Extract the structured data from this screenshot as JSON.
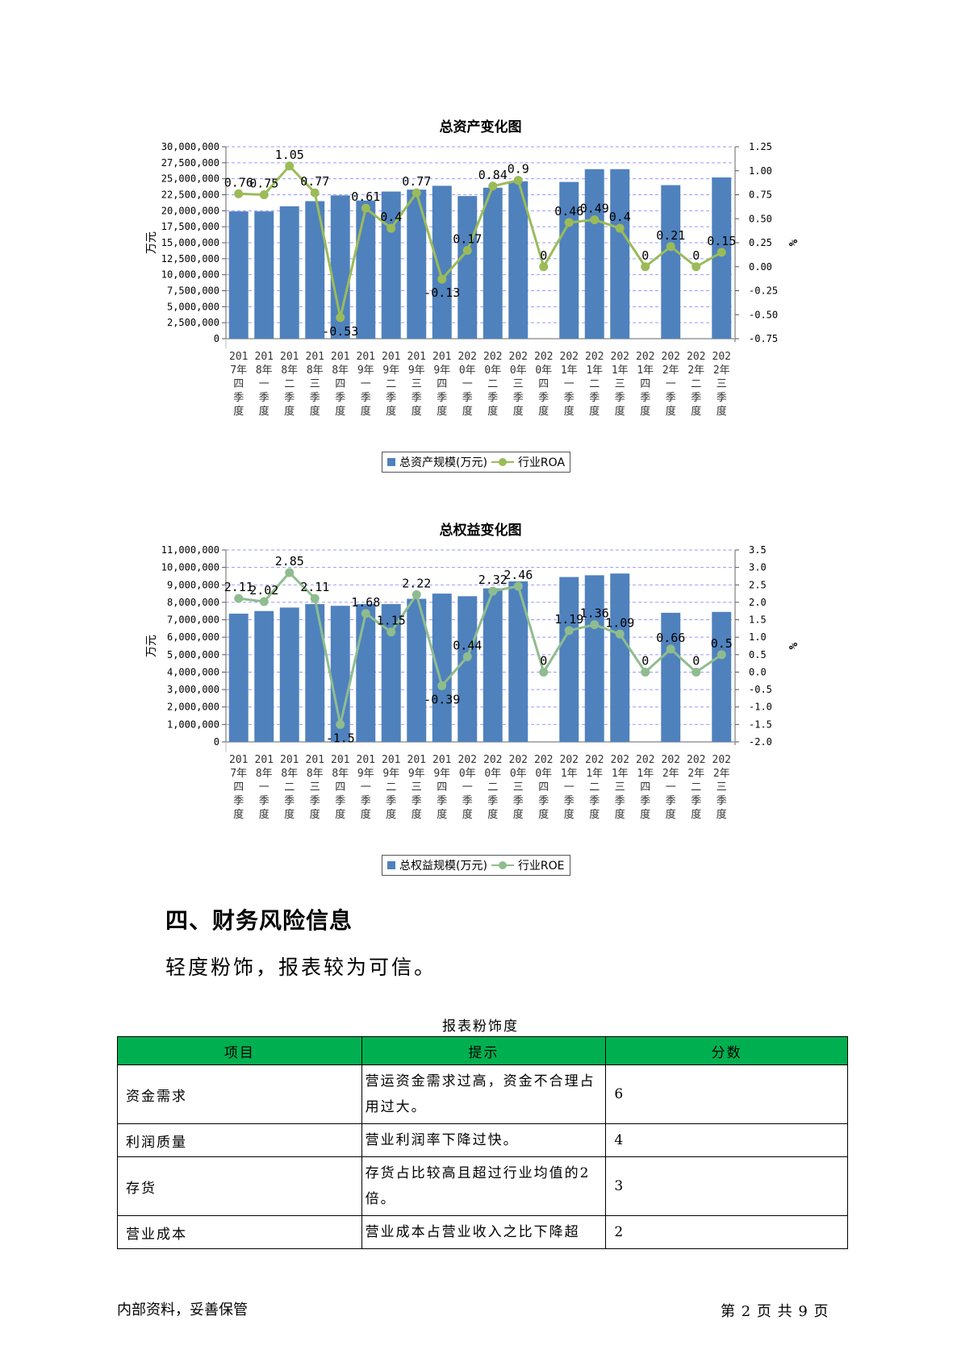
{
  "charts": [
    {
      "title": "总资产变化图",
      "chart_data": {
        "type": "bar+line",
        "title": "总资产变化图",
        "ylabel": "万元",
        "y2label": "%",
        "ylim": [
          0,
          30000000
        ],
        "y_ticks": [
          "30,000,000",
          "27,500,000",
          "25,000,000",
          "22,500,000",
          "20,000,000",
          "17,500,000",
          "15,000,000",
          "12,500,000",
          "10,000,000",
          "7,500,000",
          "5,000,000",
          "2,500,000",
          "0"
        ],
        "y2lim": [
          -0.75,
          1.25
        ],
        "y2_ticks": [
          "1.25",
          "1.00",
          "0.75",
          "0.50",
          "0.25",
          "0.00",
          "-0.25",
          "-0.50",
          "-0.75"
        ],
        "categories": [
          "2017年四季度",
          "2018年一季度",
          "2018年二季度",
          "2018年三季度",
          "2018年四季度",
          "2019年一季度",
          "2019年二季度",
          "2019年三季度",
          "2019年四季度",
          "2020年一季度",
          "2020年二季度",
          "2020年三季度",
          "2020年四季度",
          "2021年一季度",
          "2021年二季度",
          "2021年三季度",
          "2021年四季度",
          "2022年一季度",
          "2022年二季度",
          "2022年三季度"
        ],
        "series": [
          {
            "name": "总资产规模(万元)",
            "kind": "bar",
            "values": [
              19900000,
              19900000,
              20700000,
              21500000,
              22400000,
              21600000,
              23000000,
              23300000,
              23900000,
              22300000,
              23600000,
              24600000,
              null,
              24500000,
              26500000,
              26500000,
              null,
              24000000,
              null,
              25200000
            ]
          },
          {
            "name": "行业ROA",
            "kind": "line",
            "values": [
              0.76,
              0.75,
              1.05,
              0.77,
              -0.53,
              0.61,
              0.4,
              0.77,
              -0.13,
              0.17,
              0.84,
              0.9,
              0,
              0.46,
              0.49,
              0.4,
              0,
              0.21,
              0,
              0.15
            ],
            "labels": [
              "0.76",
              "0.75",
              "1.05",
              "0.77",
              "-0.53",
              "0.61",
              "0.4",
              "0.77",
              "-0.13",
              "0.17",
              "0.84",
              "0.9",
              "0",
              "0.46",
              "0.49",
              "0.4",
              "0",
              "0.21",
              "0",
              "0.15"
            ]
          }
        ],
        "legend": "bottom-center",
        "grid": true
      }
    },
    {
      "title": "总权益变化图",
      "chart_data": {
        "type": "bar+line",
        "title": "总权益变化图",
        "ylabel": "万元",
        "y2label": "%",
        "ylim": [
          0,
          11000000
        ],
        "y_ticks": [
          "11,000,000",
          "10,000,000",
          "9,000,000",
          "8,000,000",
          "7,000,000",
          "6,000,000",
          "5,000,000",
          "4,000,000",
          "3,000,000",
          "2,000,000",
          "1,000,000",
          "0"
        ],
        "y2lim": [
          -2.0,
          3.5
        ],
        "y2_ticks": [
          "3.5",
          "3.0",
          "2.5",
          "2.0",
          "1.5",
          "1.0",
          "0.5",
          "0.0",
          "-0.5",
          "-1.0",
          "-1.5",
          "-2.0"
        ],
        "categories": [
          "2017年四季度",
          "2018年一季度",
          "2018年二季度",
          "2018年三季度",
          "2018年四季度",
          "2019年一季度",
          "2019年二季度",
          "2019年三季度",
          "2019年四季度",
          "2020年一季度",
          "2020年二季度",
          "2020年三季度",
          "2020年四季度",
          "2021年一季度",
          "2021年二季度",
          "2021年三季度",
          "2021年四季度",
          "2022年一季度",
          "2022年二季度",
          "2022年三季度"
        ],
        "series": [
          {
            "name": "总权益规模(万元)",
            "kind": "bar",
            "values": [
              7350000,
              7500000,
              7700000,
              7900000,
              7800000,
              7900000,
              7900000,
              8200000,
              8500000,
              8350000,
              8800000,
              9200000,
              null,
              9450000,
              9550000,
              9650000,
              null,
              7400000,
              null,
              7450000
            ]
          },
          {
            "name": "行业ROE",
            "kind": "line",
            "values": [
              2.11,
              2.02,
              2.85,
              2.11,
              -1.5,
              1.68,
              1.15,
              2.22,
              -0.39,
              0.44,
              2.32,
              2.46,
              0,
              1.19,
              1.36,
              1.09,
              0,
              0.66,
              0,
              0.5
            ],
            "labels": [
              "2.11",
              "2.02",
              "2.85",
              "2.11",
              "-1.5",
              "1.68",
              "1.15",
              "2.22",
              "-0.39",
              "0.44",
              "2.32",
              "2.46",
              "0",
              "1.19",
              "1.36",
              "1.09",
              "0",
              "0.66",
              "0",
              "0.5"
            ]
          }
        ],
        "legend": "bottom-center",
        "grid": true
      }
    }
  ],
  "section": {
    "heading": "四、财务风险信息",
    "body": "轻度粉饰，报表较为可信。"
  },
  "table": {
    "caption": "报表粉饰度",
    "headers": [
      "项目",
      "提示",
      "分数"
    ],
    "rows": [
      {
        "item": "资金需求",
        "hint": "营运资金需求过高，资金不合理占用过大。",
        "score": "6"
      },
      {
        "item": "利润质量",
        "hint": "营业利润率下降过快。",
        "score": "4"
      },
      {
        "item": "存货",
        "hint": "存货占比较高且超过行业均值的2倍。",
        "score": "3"
      },
      {
        "item": "营业成本",
        "hint": "营业成本占营业收入之比下降超",
        "score": "2"
      }
    ],
    "header_color": "#00b050"
  },
  "footer": {
    "left": "内部资料，妥善保管",
    "right": "第 2 页  共 9 页"
  },
  "colors": {
    "bar": "#4f81bd",
    "line1": "#9bbb59",
    "line2": "#8fbc8f",
    "grid": "#9999ff"
  }
}
